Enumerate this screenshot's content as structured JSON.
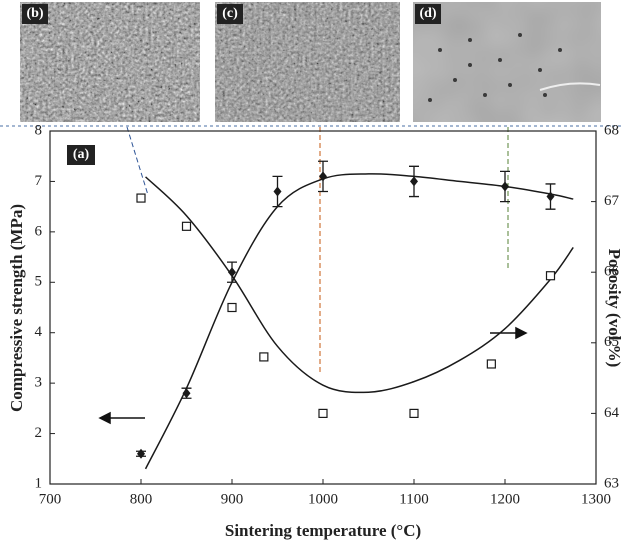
{
  "chart_data": {
    "type": "dual-axis-scatter",
    "panel_labels": [
      "(a)",
      "(b)",
      "(c)",
      "(d)"
    ],
    "xlabel": "Sintering temperature (°C)",
    "ylabel": "Compressive strength (MPa)",
    "y2label": "Porosity (vol.%)",
    "xlim": [
      700,
      1300
    ],
    "xticks": [
      700,
      800,
      900,
      1000,
      1100,
      1200,
      1300
    ],
    "ylim": [
      1,
      8
    ],
    "yticks": [
      1,
      2,
      3,
      4,
      5,
      6,
      7,
      8
    ],
    "y2lim": [
      63,
      68
    ],
    "y2ticks": [
      63,
      64,
      65,
      66,
      67,
      68
    ],
    "series": [
      {
        "marker": "diamond",
        "color": "#1a1a1a",
        "axis": "y",
        "x": [
          800,
          850,
          900,
          950,
          1000,
          1100,
          1200,
          1250
        ],
        "values": [
          1.6,
          2.8,
          5.2,
          6.8,
          7.1,
          7.0,
          6.9,
          6.7
        ],
        "errors": [
          0.05,
          0.1,
          0.2,
          0.3,
          0.3,
          0.3,
          0.3,
          0.25
        ]
      },
      {
        "marker": "square",
        "color": "#1a1a1a",
        "axis": "y2",
        "x": [
          800,
          850,
          900,
          935,
          1000,
          1100,
          1185,
          1250
        ],
        "values": [
          67.05,
          66.65,
          65.5,
          64.8,
          64.0,
          64.0,
          64.7,
          65.95
        ]
      }
    ],
    "fits": [
      {
        "axis": "y",
        "color": "#1a1a1a",
        "x": [
          805,
          850,
          900,
          950,
          1000,
          1050,
          1100,
          1150,
          1200,
          1250,
          1275
        ],
        "values": [
          1.3,
          2.9,
          5.0,
          6.5,
          7.05,
          7.15,
          7.1,
          7.0,
          6.9,
          6.75,
          6.65
        ]
      },
      {
        "axis": "y2",
        "color": "#1a1a1a",
        "x": [
          805,
          850,
          900,
          950,
          1000,
          1050,
          1100,
          1150,
          1200,
          1250,
          1275
        ],
        "values": [
          67.35,
          66.8,
          65.95,
          64.95,
          64.4,
          64.3,
          64.45,
          64.75,
          65.2,
          65.9,
          66.35
        ]
      }
    ]
  }
}
